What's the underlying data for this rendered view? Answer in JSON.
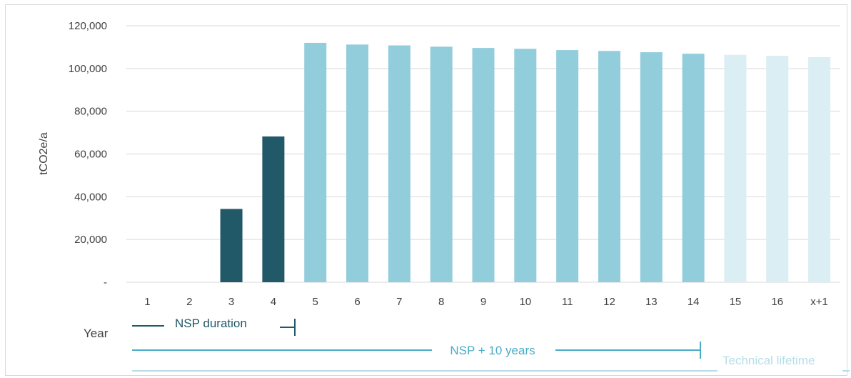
{
  "chart_data": {
    "type": "bar",
    "ylabel": "tCO2e/a",
    "ylim": [
      0,
      120000
    ],
    "yticks": [
      0,
      20000,
      40000,
      60000,
      80000,
      100000,
      120000
    ],
    "ytick_labels": [
      "-",
      "20,000",
      "40,000",
      "60,000",
      "80,000",
      "100,000",
      "120,000"
    ],
    "categories": [
      "1",
      "2",
      "3",
      "4",
      "5",
      "6",
      "7",
      "8",
      "9",
      "10",
      "11",
      "12",
      "13",
      "14",
      "15",
      "16",
      "x+1"
    ],
    "values": [
      0,
      0,
      34300,
      68200,
      112000,
      111200,
      110800,
      110200,
      109600,
      109200,
      108600,
      108200,
      107600,
      106900,
      106400,
      105900,
      105300
    ],
    "bar_colors": [
      "#215968",
      "#215968",
      "#215968",
      "#215968",
      "#92cddc",
      "#92cddc",
      "#92cddc",
      "#92cddc",
      "#92cddc",
      "#92cddc",
      "#92cddc",
      "#92cddc",
      "#92cddc",
      "#92cddc",
      "#daeef3",
      "#daeef3",
      "#daeef3"
    ],
    "grid": true
  },
  "annotations": {
    "year_label": "Year",
    "nsp_duration": "NSP duration",
    "nsp_plus_10": "NSP + 10 years",
    "technical_lifetime": "Technical lifetime"
  },
  "colors": {
    "dark": "#215968",
    "mid": "#4bacc6",
    "light": "#b7dee8",
    "grid": "#d9d9d9",
    "axis_text": "#404040"
  }
}
